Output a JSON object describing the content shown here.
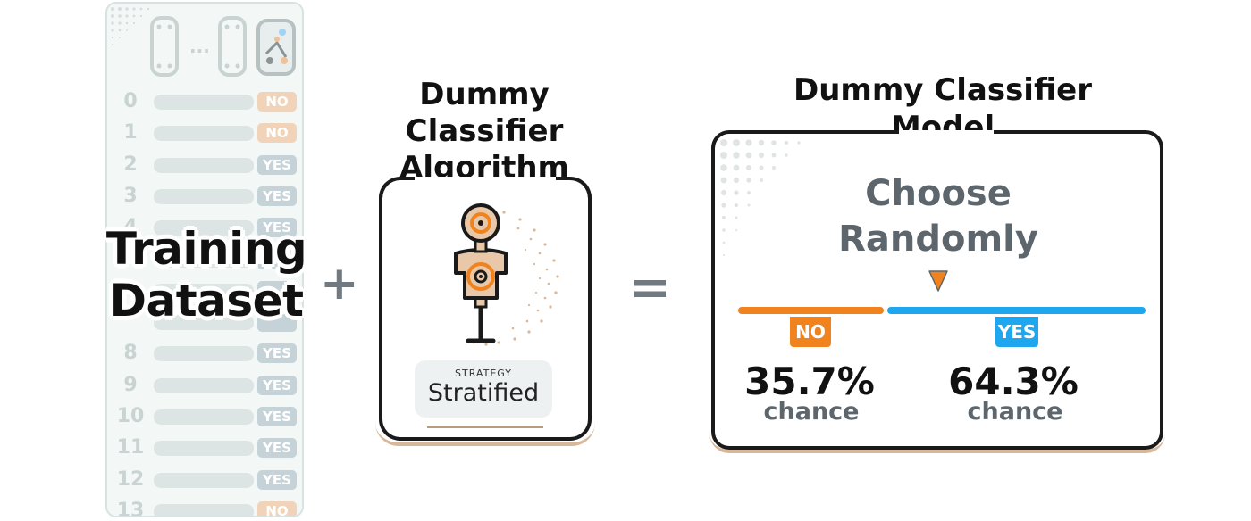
{
  "dataset": {
    "title_line1": "Training",
    "title_line2": "Dataset",
    "rows": [
      {
        "index": "0",
        "label": "NO"
      },
      {
        "index": "1",
        "label": "NO"
      },
      {
        "index": "2",
        "label": "YES"
      },
      {
        "index": "3",
        "label": "YES"
      },
      {
        "index": "4",
        "label": "YES"
      },
      {
        "index": "",
        "label": ""
      },
      {
        "index": "",
        "label": ""
      },
      {
        "index": "",
        "label": ""
      },
      {
        "index": "8",
        "label": "YES"
      },
      {
        "index": "9",
        "label": "YES"
      },
      {
        "index": "10",
        "label": "YES"
      },
      {
        "index": "11",
        "label": "YES"
      },
      {
        "index": "12",
        "label": "YES"
      },
      {
        "index": "13",
        "label": "NO"
      }
    ],
    "ellipsis": "..."
  },
  "plus": "+",
  "equals": "=",
  "algorithm": {
    "title_line1": "Dummy",
    "title_line2": "Classifier",
    "title_line3": "Algorithm",
    "strategy_caption": "STRATEGY",
    "strategy_value": "Stratified"
  },
  "model": {
    "title_line1": "Dummy Classifier",
    "title_line2": "Model",
    "choose_line1": "Choose",
    "choose_line2": "Randomly",
    "no_label": "NO",
    "yes_label": "YES",
    "no_pct": "35.7%",
    "yes_pct": "64.3%",
    "no_fraction": 0.357,
    "yes_fraction": 0.643,
    "chance_word": "chance"
  },
  "colors": {
    "no": "#f0831e",
    "yes": "#1ea7ee",
    "text_dark": "#111111",
    "text_gray": "#5c666c",
    "card_border": "#1a1a1a",
    "accent_tan": "#d7b89a"
  }
}
